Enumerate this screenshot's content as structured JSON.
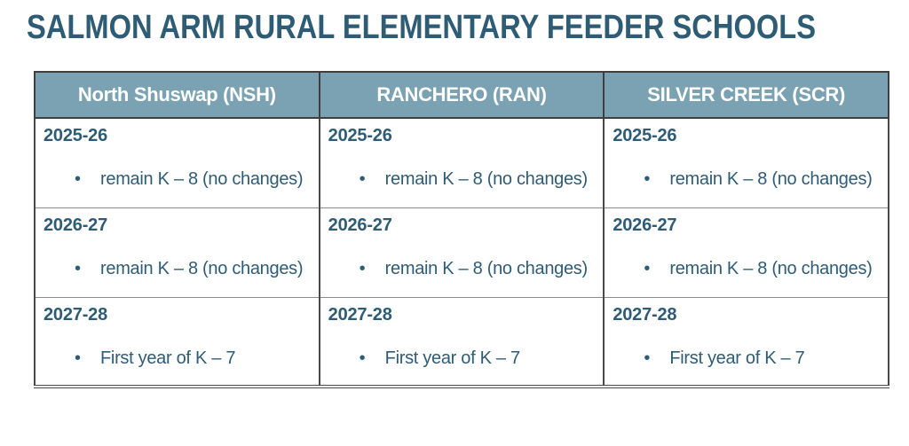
{
  "slide": {
    "title": "SALMON ARM RURAL ELEMENTARY FEEDER SCHOOLS"
  },
  "table": {
    "headers": [
      "North Shuswap (NSH)",
      "RANCHERO (RAN)",
      "SILVER CREEK (SCR)"
    ],
    "bullet_char": "•",
    "rows": [
      {
        "cells": [
          {
            "year": "2025-26",
            "item": "remain K – 8 (no changes)"
          },
          {
            "year": "2025-26",
            "item": "remain K – 8 (no changes)"
          },
          {
            "year": "2025-26",
            "item": "remain K – 8 (no changes)"
          }
        ]
      },
      {
        "cells": [
          {
            "year": "2026-27",
            "item": "remain K – 8 (no changes)"
          },
          {
            "year": "2026-27",
            "item": "remain K – 8 (no changes)"
          },
          {
            "year": "2026-27",
            "item": "remain K – 8 (no changes)"
          }
        ]
      },
      {
        "cells": [
          {
            "year": "2027-28",
            "item": "First year of K – 7"
          },
          {
            "year": "2027-28",
            "item": "First year of K – 7"
          },
          {
            "year": "2027-28",
            "item": "First year of K – 7"
          }
        ]
      }
    ]
  },
  "colors": {
    "background": "#FFFFFF",
    "title_text": "#2E5C75",
    "header_bg": "#7AA2B2",
    "header_text": "#FFFFFF",
    "cell_text": "#2E5C75",
    "border_dark": "#3F3F3F",
    "border_light": "#8C8C8C"
  }
}
